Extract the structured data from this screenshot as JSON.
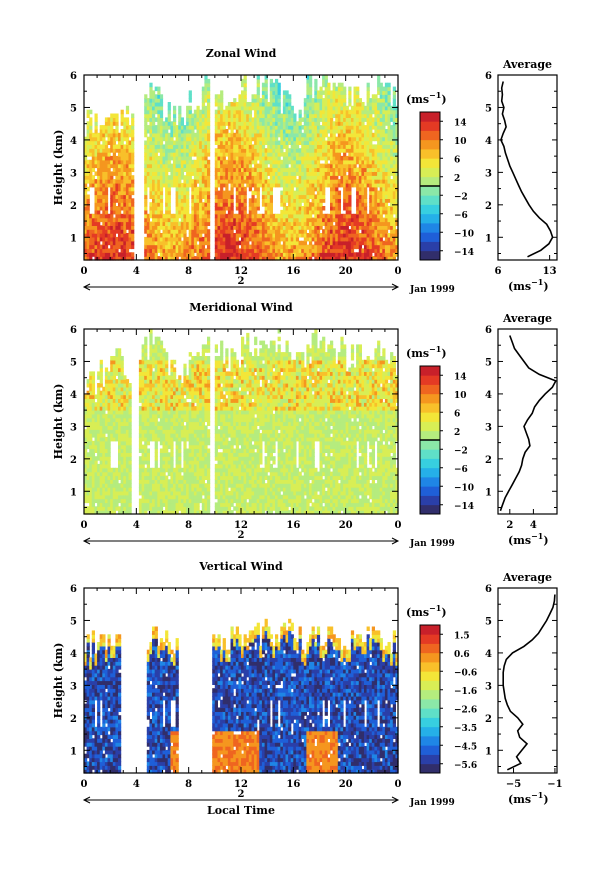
{
  "chart_data": [
    {
      "type": "heatmap",
      "title": "Zonal Wind",
      "xlabel": "",
      "ylabel": "Height (km)",
      "x_ticks": [
        "0",
        "4",
        "8",
        "12",
        "16",
        "20",
        "0"
      ],
      "x_range": [
        0,
        24
      ],
      "y_ticks": [
        "1",
        "2",
        "3",
        "4",
        "5",
        "6"
      ],
      "y_range": [
        0.3,
        6
      ],
      "date_mark": "2",
      "date_label": "Jan 1999",
      "colorbar": {
        "unit": "(ms",
        "unit_exp": "−1",
        "unit_close": ")",
        "levels": [
          "14",
          "10",
          "6",
          "2",
          "−2",
          "−6",
          "−10",
          "−14"
        ],
        "range": [
          -16,
          16
        ],
        "zero_mark": 2
      },
      "precip_gaps_hours": [
        [
          3.9,
          4.6
        ],
        [
          9.6,
          10.1
        ]
      ],
      "echo_top_km": [
        4.6,
        4.5,
        4.6,
        4.9,
        5.2,
        5.6,
        5.0,
        4.8,
        5.3,
        5.8,
        5.4,
        5.0,
        5.6,
        5.7,
        5.5,
        5.2,
        5.0,
        5.7,
        5.9,
        5.7,
        5.3,
        5.5,
        5.6,
        5.4
      ],
      "field": "zonal",
      "average": {
        "title": "Average",
        "xlabel": "(ms",
        "xlabel_exp": "−1",
        "xlabel_close": ")",
        "x_ticks": [
          "6",
          "13"
        ],
        "x_range": [
          6,
          14
        ],
        "y_range": [
          0.3,
          6
        ],
        "height_km": [
          0.4,
          0.6,
          0.8,
          1.0,
          1.2,
          1.4,
          1.6,
          1.8,
          2.0,
          2.2,
          2.4,
          2.6,
          2.8,
          3.0,
          3.2,
          3.4,
          3.6,
          3.8,
          4.0,
          4.2,
          4.4,
          4.6,
          4.8,
          5.0,
          5.2,
          5.4,
          5.6,
          5.8
        ],
        "value": [
          10.0,
          11.8,
          12.9,
          13.4,
          13.1,
          12.6,
          11.6,
          10.8,
          10.2,
          9.7,
          9.2,
          8.8,
          8.4,
          8.0,
          7.6,
          7.3,
          7.0,
          6.8,
          6.4,
          6.7,
          7.1,
          6.9,
          6.6,
          6.8,
          6.5,
          6.6,
          6.5,
          6.7
        ]
      }
    },
    {
      "type": "heatmap",
      "title": "Meridional Wind",
      "xlabel": "",
      "ylabel": "Height (km)",
      "x_ticks": [
        "0",
        "4",
        "8",
        "12",
        "16",
        "20",
        "0"
      ],
      "x_range": [
        0,
        24
      ],
      "y_ticks": [
        "1",
        "2",
        "3",
        "4",
        "5",
        "6"
      ],
      "y_range": [
        0.3,
        6
      ],
      "date_mark": "2",
      "date_label": "Jan 1999",
      "colorbar": {
        "unit": "(ms",
        "unit_exp": "−1",
        "unit_close": ")",
        "levels": [
          "14",
          "10",
          "6",
          "2",
          "−2",
          "−6",
          "−10",
          "−14"
        ],
        "range": [
          -16,
          16
        ],
        "zero_mark": 2
      },
      "precip_gaps_hours": [
        [
          3.6,
          4.2
        ],
        [
          9.6,
          10.1
        ]
      ],
      "echo_top_km": [
        4.3,
        4.6,
        5.0,
        4.7,
        5.4,
        5.8,
        5.0,
        4.6,
        5.2,
        5.7,
        5.4,
        5.0,
        5.5,
        5.6,
        5.7,
        5.2,
        5.0,
        5.6,
        5.5,
        5.4,
        5.1,
        5.3,
        5.4,
        5.0
      ],
      "field": "meridional",
      "average": {
        "title": "Average",
        "xlabel": "(ms",
        "xlabel_exp": "−1",
        "xlabel_close": ")",
        "x_ticks": [
          "2",
          "4"
        ],
        "x_range": [
          1,
          6
        ],
        "y_range": [
          0.3,
          6
        ],
        "height_km": [
          0.4,
          0.6,
          0.8,
          1.0,
          1.2,
          1.4,
          1.6,
          1.8,
          2.0,
          2.2,
          2.4,
          2.6,
          2.8,
          3.0,
          3.2,
          3.4,
          3.6,
          3.8,
          4.0,
          4.2,
          4.4,
          4.6,
          4.8,
          5.0,
          5.2,
          5.4,
          5.6,
          5.8
        ],
        "value": [
          1.2,
          1.4,
          1.6,
          1.9,
          2.2,
          2.5,
          2.8,
          3.0,
          3.1,
          3.3,
          3.7,
          3.6,
          3.4,
          3.2,
          3.5,
          3.9,
          4.1,
          4.5,
          5.0,
          5.6,
          5.9,
          4.5,
          3.6,
          3.2,
          2.8,
          2.4,
          2.2,
          2.0
        ]
      }
    },
    {
      "type": "heatmap",
      "title": "Vertical Wind",
      "xlabel": "Local Time",
      "ylabel": "Height (km)",
      "x_ticks": [
        "0",
        "4",
        "8",
        "12",
        "16",
        "20",
        "0"
      ],
      "x_range": [
        0,
        24
      ],
      "y_ticks": [
        "1",
        "2",
        "3",
        "4",
        "5",
        "6"
      ],
      "y_range": [
        0.3,
        6
      ],
      "date_mark": "2",
      "date_label": "Jan 1999",
      "colorbar": {
        "unit": "(ms",
        "unit_exp": "−1",
        "unit_close": ")",
        "levels": [
          "1.5",
          "0.6",
          "−0.6",
          "−1.6",
          "−2.6",
          "−3.5",
          "−4.5",
          "−5.6"
        ],
        "range": [
          -6,
          2
        ],
        "zero_mark": null
      },
      "precip_gaps_hours": [
        [
          2.8,
          4.7
        ],
        [
          7.3,
          9.8
        ]
      ],
      "echo_top_km": [
        4.3,
        4.4,
        4.6,
        4.4,
        4.3,
        4.5,
        4.3,
        4.2,
        4.4,
        4.6,
        4.5,
        4.4,
        4.6,
        4.7,
        4.5,
        4.6,
        4.4,
        4.5,
        4.6,
        4.4,
        4.5,
        4.6,
        4.5,
        4.4
      ],
      "field": "vertical",
      "average": {
        "title": "Average",
        "xlabel": "(ms",
        "xlabel_exp": "−1",
        "xlabel_close": ")",
        "x_ticks": [
          "−5",
          "−1"
        ],
        "x_range": [
          -6.5,
          -0.8
        ],
        "y_range": [
          0.3,
          6
        ],
        "height_km": [
          0.4,
          0.6,
          0.8,
          1.0,
          1.2,
          1.4,
          1.6,
          1.8,
          2.0,
          2.2,
          2.4,
          2.6,
          2.8,
          3.0,
          3.2,
          3.4,
          3.6,
          3.8,
          4.0,
          4.2,
          4.4,
          4.6,
          4.8,
          5.0,
          5.2,
          5.4,
          5.6,
          5.8
        ],
        "value": [
          -5.6,
          -4.3,
          -4.7,
          -4.2,
          -3.7,
          -4.4,
          -4.6,
          -4.1,
          -4.6,
          -5.3,
          -5.6,
          -5.8,
          -5.9,
          -6.0,
          -6.0,
          -6.0,
          -5.9,
          -5.7,
          -5.1,
          -4.0,
          -3.2,
          -2.6,
          -2.2,
          -1.8,
          -1.5,
          -1.2,
          -1.05,
          -1.0
        ]
      }
    }
  ],
  "colors": {
    "colormap": [
      "#312e6b",
      "#2a3fa8",
      "#1f5fd8",
      "#1f86e6",
      "#25b0e8",
      "#37cfe0",
      "#5fe0c8",
      "#8be8a8",
      "#b5ec7e",
      "#d8ee55",
      "#f3e638",
      "#f8c02a",
      "#f5961f",
      "#ef6520",
      "#e43a24",
      "#c8202a"
    ]
  }
}
